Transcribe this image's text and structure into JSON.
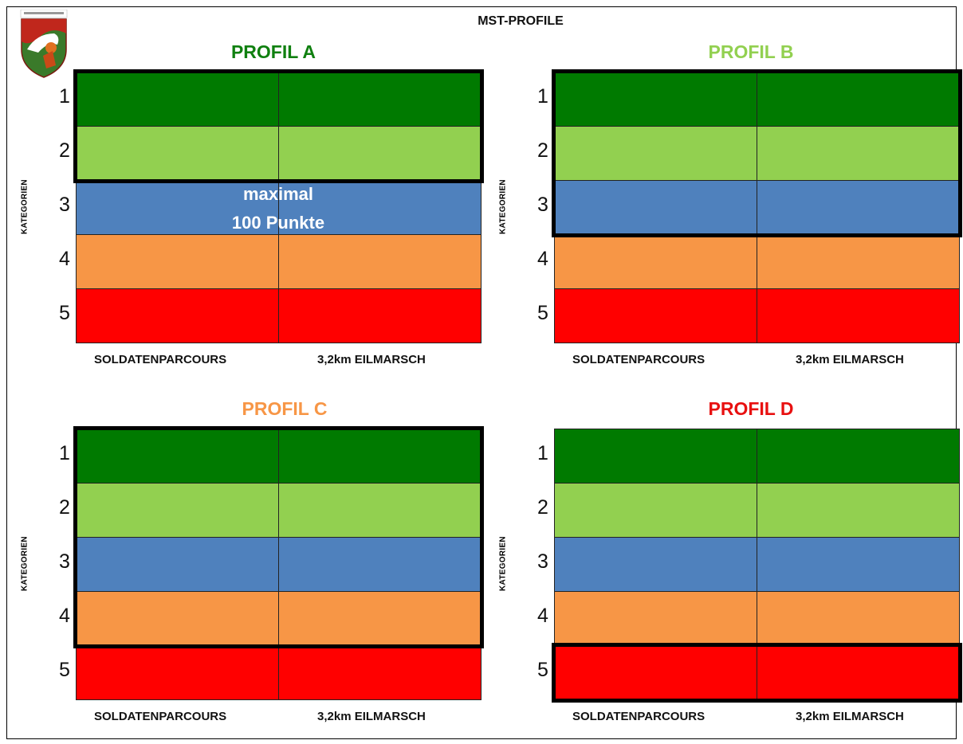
{
  "title": "MST-PROFILE",
  "y_axis_label": "KATEGORIEN",
  "columns": [
    "SOLDATENPARCOURS",
    "3,2km EILMARSCH"
  ],
  "categories": [
    "1",
    "2",
    "3",
    "4",
    "5"
  ],
  "category_colors": [
    "#007a00",
    "#92d050",
    "#4f81bd",
    "#f79646",
    "#ff0000"
  ],
  "note": {
    "line1": "maximal",
    "line2": "100 Punkte"
  },
  "profiles": [
    {
      "name": "PROFIL A",
      "color": "#108010",
      "highlight_categories": [
        "1",
        "2"
      ],
      "note": true
    },
    {
      "name": "PROFIL B",
      "color": "#92d050",
      "highlight_categories": [
        "1",
        "2",
        "3"
      ],
      "note": false
    },
    {
      "name": "PROFIL C",
      "color": "#f79646",
      "highlight_categories": [
        "1",
        "2",
        "3",
        "4"
      ],
      "note": false
    },
    {
      "name": "PROFIL D",
      "color": "#e81010",
      "highlight_categories": [
        "5"
      ],
      "note": false
    }
  ]
}
